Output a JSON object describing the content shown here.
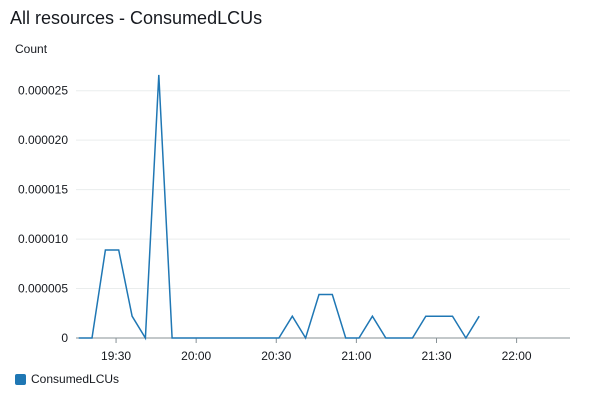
{
  "chart_data": {
    "type": "line",
    "title": "All resources - ConsumedLCUs",
    "ylabel": "Count",
    "xlabel": "",
    "ylim": [
      0,
      2.75e-05
    ],
    "yticks": [
      {
        "value": 0,
        "label": "0"
      },
      {
        "value": 5e-06,
        "label": "0.000005"
      },
      {
        "value": 1e-05,
        "label": "0.000010"
      },
      {
        "value": 1.5e-05,
        "label": "0.000015"
      },
      {
        "value": 2e-05,
        "label": "0.000020"
      },
      {
        "value": 2.5e-05,
        "label": "0.000025"
      }
    ],
    "xlim": [
      "19:15",
      "22:20"
    ],
    "xticks": [
      "19:30",
      "20:00",
      "20:30",
      "21:00",
      "21:30",
      "22:00"
    ],
    "grid": true,
    "legend_position": "bottom-left",
    "series": [
      {
        "name": "ConsumedLCUs",
        "color": "#1f77b4",
        "points": [
          [
            "19:16",
            0
          ],
          [
            "19:21",
            0
          ],
          [
            "19:26",
            8.9e-06
          ],
          [
            "19:31",
            8.9e-06
          ],
          [
            "19:36",
            2.2e-06
          ],
          [
            "19:41",
            0
          ],
          [
            "19:46",
            2.66e-05
          ],
          [
            "19:51",
            0
          ],
          [
            "19:56",
            0
          ],
          [
            "20:01",
            0
          ],
          [
            "20:06",
            0
          ],
          [
            "20:11",
            0
          ],
          [
            "20:16",
            0
          ],
          [
            "20:21",
            0
          ],
          [
            "20:26",
            0
          ],
          [
            "20:31",
            0
          ],
          [
            "20:36",
            2.2e-06
          ],
          [
            "20:41",
            0
          ],
          [
            "20:46",
            4.4e-06
          ],
          [
            "20:51",
            4.4e-06
          ],
          [
            "20:56",
            0
          ],
          [
            "21:01",
            0
          ],
          [
            "21:06",
            2.2e-06
          ],
          [
            "21:11",
            0
          ],
          [
            "21:16",
            0
          ],
          [
            "21:21",
            0
          ],
          [
            "21:26",
            2.2e-06
          ],
          [
            "21:31",
            2.2e-06
          ],
          [
            "21:36",
            2.2e-06
          ],
          [
            "21:41",
            0
          ],
          [
            "21:46",
            2.2e-06
          ]
        ]
      }
    ]
  }
}
